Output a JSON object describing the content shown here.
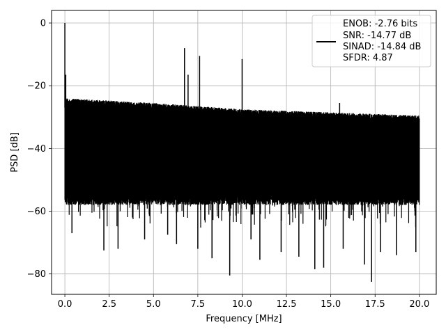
{
  "chart_data": {
    "type": "line",
    "title": "",
    "xlabel": "Frequency [MHz]",
    "ylabel": "PSD [dB]",
    "xlim": [
      -0.75,
      20.95
    ],
    "ylim": [
      -86.5,
      4.0
    ],
    "grid": true,
    "legend_position": "top-right",
    "x_ticks": [
      0.0,
      2.5,
      5.0,
      7.5,
      10.0,
      12.5,
      15.0,
      17.5,
      20.0
    ],
    "x_tick_labels": [
      "0.0",
      "2.5",
      "5.0",
      "7.5",
      "10.0",
      "12.5",
      "15.0",
      "17.5",
      "20.0"
    ],
    "y_ticks": [
      0,
      -20,
      -40,
      -60,
      -80
    ],
    "y_tick_labels": [
      "0",
      "−20",
      "−40",
      "−60",
      "−80"
    ],
    "legend": {
      "lines": [
        "ENOB: -2.76 bits",
        "SNR: -14.77 dB",
        "SINAD: -14.84 dB",
        "SFDR: 4.87"
      ]
    },
    "series": [
      {
        "color": "#000000",
        "noise_band": {
          "x_range": [
            0.0,
            20.0
          ],
          "upper_envelope_db": [
            [
              0.0,
              -24
            ],
            [
              5.0,
              -25.5
            ],
            [
              10.0,
              -27.5
            ],
            [
              15.0,
              -28.5
            ],
            [
              20.0,
              -29.5
            ]
          ],
          "lower_typical_db": -58
        },
        "peaks": [
          {
            "x": 0.0,
            "y": 0.0
          },
          {
            "x": 0.05,
            "y": -16.5
          },
          {
            "x": 6.75,
            "y": -8.0
          },
          {
            "x": 6.95,
            "y": -16.5
          },
          {
            "x": 7.6,
            "y": -10.5
          },
          {
            "x": 10.0,
            "y": -11.5
          },
          {
            "x": 15.5,
            "y": -25.5
          }
        ],
        "dips": [
          {
            "x": 0.4,
            "y": -67.0
          },
          {
            "x": 2.2,
            "y": -72.5
          },
          {
            "x": 3.0,
            "y": -72.0
          },
          {
            "x": 4.5,
            "y": -69.0
          },
          {
            "x": 5.8,
            "y": -67.5
          },
          {
            "x": 6.3,
            "y": -70.5
          },
          {
            "x": 7.5,
            "y": -72.0
          },
          {
            "x": 8.3,
            "y": -75.0
          },
          {
            "x": 9.3,
            "y": -80.5
          },
          {
            "x": 10.5,
            "y": -69.0
          },
          {
            "x": 11.0,
            "y": -75.5
          },
          {
            "x": 12.2,
            "y": -73.0
          },
          {
            "x": 13.2,
            "y": -74.5
          },
          {
            "x": 14.1,
            "y": -78.5
          },
          {
            "x": 14.6,
            "y": -78.0
          },
          {
            "x": 15.7,
            "y": -72.0
          },
          {
            "x": 16.9,
            "y": -77.0
          },
          {
            "x": 17.3,
            "y": -82.5
          },
          {
            "x": 17.8,
            "y": -73.0
          },
          {
            "x": 18.7,
            "y": -74.0
          },
          {
            "x": 19.8,
            "y": -73.0
          }
        ]
      }
    ]
  }
}
